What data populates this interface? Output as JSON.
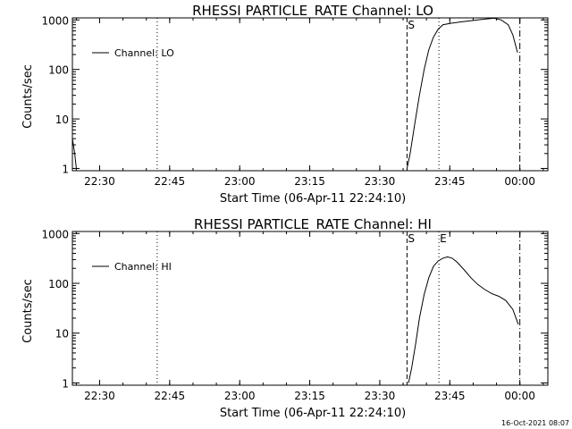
{
  "timestamp": "16-Oct-2021 08:07",
  "chart_data": [
    {
      "type": "line",
      "title": "RHESSI PARTICLE_RATE Channel: LO",
      "xlabel": "Start Time (06-Apr-11 22:24:10)",
      "ylabel": "Counts/sec",
      "y_scale": "log",
      "ylim": [
        0.9,
        1100
      ],
      "xlim": [
        "22:24:10",
        "00:06:00"
      ],
      "x_ticks": [
        "22:30",
        "22:45",
        "23:00",
        "23:15",
        "23:30",
        "23:45",
        "00:00"
      ],
      "y_ticks": [
        "1",
        "10",
        "100",
        "1000"
      ],
      "legend": {
        "position": "top-left",
        "entries": [
          "Channel: LO"
        ]
      },
      "markers": [
        {
          "label": "S",
          "time": "23:35:50",
          "style": "dashed"
        },
        {
          "label": "",
          "time": "23:42:40",
          "style": "dotted"
        },
        {
          "label": "",
          "time": "22:42:20",
          "style": "dotted"
        },
        {
          "label": "",
          "time": "00:00:00",
          "style": "dashdot"
        }
      ],
      "series": [
        {
          "name": "Channel: LO",
          "segments": [
            [
              [
                "22:24:10",
                4
              ],
              [
                "22:24:40",
                2
              ],
              [
                "22:25:00",
                1
              ]
            ],
            [
              [
                "23:35:50",
                1
              ],
              [
                "23:36:30",
                2
              ],
              [
                "23:37:30",
                8
              ],
              [
                "23:38:30",
                30
              ],
              [
                "23:39:30",
                100
              ],
              [
                "23:40:30",
                250
              ],
              [
                "23:41:30",
                450
              ],
              [
                "23:42:30",
                650
              ],
              [
                "23:43:30",
                800
              ],
              [
                "23:45:00",
                850
              ],
              [
                "23:47:00",
                900
              ],
              [
                "23:49:00",
                950
              ],
              [
                "23:51:00",
                1000
              ],
              [
                "23:53:00",
                1050
              ],
              [
                "23:54:30",
                1080
              ],
              [
                "23:56:00",
                1000
              ],
              [
                "23:57:30",
                800
              ],
              [
                "23:58:30",
                500
              ],
              [
                "23:59:30",
                220
              ]
            ]
          ]
        }
      ]
    },
    {
      "type": "line",
      "title": "RHESSI PARTICLE_RATE Channel: HI",
      "xlabel": "Start Time (06-Apr-11 22:24:10)",
      "ylabel": "Counts/sec",
      "y_scale": "log",
      "ylim": [
        0.9,
        1100
      ],
      "xlim": [
        "22:24:10",
        "00:06:00"
      ],
      "x_ticks": [
        "22:30",
        "22:45",
        "23:00",
        "23:15",
        "23:30",
        "23:45",
        "00:00"
      ],
      "y_ticks": [
        "1",
        "10",
        "100",
        "1000"
      ],
      "legend": {
        "position": "top-left",
        "entries": [
          "Channel: HI"
        ]
      },
      "markers": [
        {
          "label": "S",
          "time": "23:35:50",
          "style": "dashed"
        },
        {
          "label": "E",
          "time": "23:42:40",
          "style": "dotted"
        },
        {
          "label": "",
          "time": "22:42:20",
          "style": "dotted"
        },
        {
          "label": "",
          "time": "00:00:00",
          "style": "dashdot"
        }
      ],
      "series": [
        {
          "name": "Channel: HI",
          "segments": [
            [
              [
                "23:36:10",
                1
              ],
              [
                "23:36:50",
                2
              ],
              [
                "23:37:40",
                6
              ],
              [
                "23:38:30",
                20
              ],
              [
                "23:39:30",
                60
              ],
              [
                "23:40:30",
                130
              ],
              [
                "23:41:30",
                220
              ],
              [
                "23:42:30",
                280
              ],
              [
                "23:43:30",
                320
              ],
              [
                "23:44:30",
                340
              ],
              [
                "23:45:30",
                320
              ],
              [
                "23:46:30",
                270
              ],
              [
                "23:48:00",
                190
              ],
              [
                "23:49:30",
                130
              ],
              [
                "23:51:00",
                95
              ],
              [
                "23:52:30",
                75
              ],
              [
                "23:54:00",
                62
              ],
              [
                "23:55:30",
                55
              ],
              [
                "23:57:00",
                45
              ],
              [
                "23:58:30",
                30
              ],
              [
                "23:59:40",
                15
              ]
            ]
          ]
        }
      ]
    }
  ]
}
